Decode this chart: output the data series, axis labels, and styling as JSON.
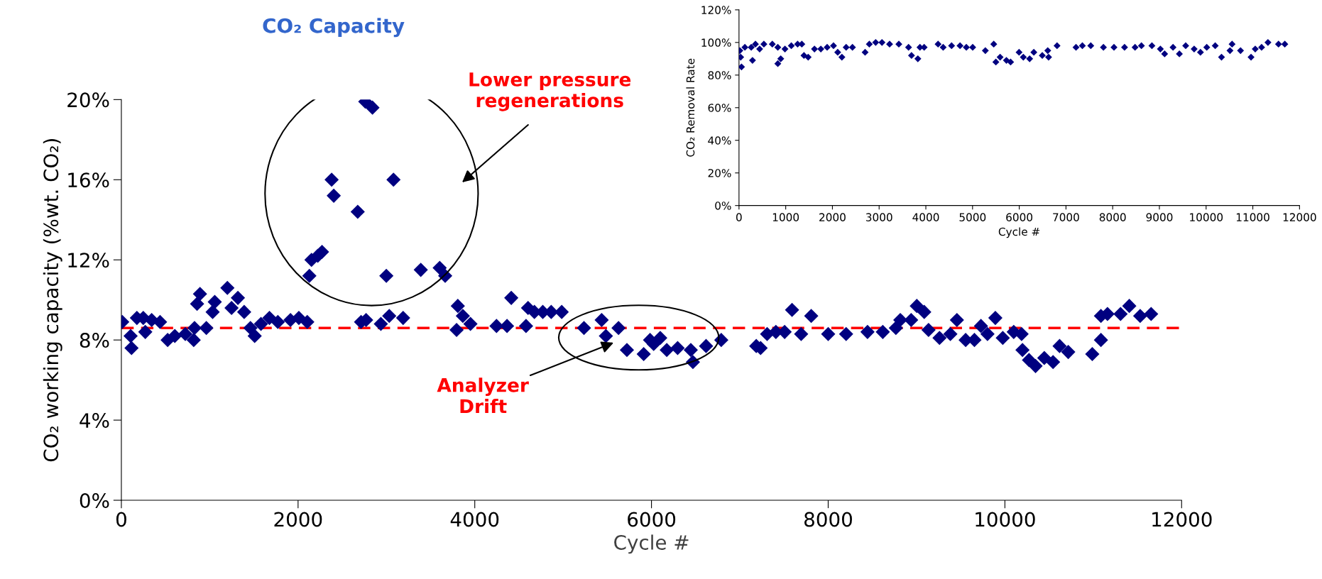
{
  "chart_data": [
    {
      "type": "scatter",
      "title": "CO₂ Capacity",
      "xlabel": "Cycle #",
      "ylabel": "CO₂ working capacity (%wt. CO₂)",
      "marker": "diamond",
      "xlim": [
        0,
        12000
      ],
      "xticks": [
        0,
        2000,
        4000,
        6000,
        8000,
        10000,
        12000
      ],
      "ylim": [
        0,
        20
      ],
      "yticks": [
        {
          "value": 0,
          "label": "0%"
        },
        {
          "value": 4,
          "label": "4%"
        },
        {
          "value": 8,
          "label": "8%"
        },
        {
          "value": 12,
          "label": "12%"
        },
        {
          "value": 16,
          "label": "16%"
        },
        {
          "value": 20,
          "label": "20%"
        }
      ],
      "ref_lines": [
        {
          "axis": "y",
          "value": 8.6,
          "color": "#ff0000",
          "line_style": "dashed"
        }
      ],
      "annotations": [
        "Lower pressure\nregenerations",
        "Analyzer\nDrift"
      ],
      "series": [
        {
          "color": "#000080",
          "x": [
            10,
            105,
            115,
            176,
            248,
            271,
            343,
            438,
            524,
            605,
            724,
            819,
            828,
            857,
            890,
            962,
            1033,
            1057,
            1200,
            1247,
            1319,
            1390,
            1461,
            1509,
            1580,
            1676,
            1771,
            1914,
            2009,
            2104,
            2128,
            2152,
            2223,
            2271,
            2380,
            2404,
            2675,
            2713,
            2770,
            2761,
            2842,
            2937,
            2999,
            3032,
            3080,
            3189,
            3389,
            3603,
            3665,
            3808,
            3794,
            3865,
            3951,
            4246,
            4365,
            4413,
            4580,
            4603,
            4675,
            4770,
            4865,
            4984,
            5236,
            5436,
            5484,
            5627,
            5722,
            5912,
            5984,
            6025,
            6099,
            6173,
            6296,
            6445,
            6469,
            6618,
            6790,
            7186,
            7235,
            7309,
            7408,
            7507,
            7591,
            7694,
            7808,
            8000,
            8203,
            8445,
            8618,
            8766,
            8816,
            8939,
            9003,
            9087,
            9136,
            9260,
            9383,
            9457,
            9556,
            9655,
            9729,
            9803,
            9892,
            9976,
            10100,
            10189,
            10199,
            10273,
            10347,
            10446,
            10545,
            10619,
            10717,
            10989,
            11087,
            11087,
            11161,
            11309,
            11408,
            11531,
            11655
          ],
          "values": [
            8.9,
            8.2,
            7.6,
            9.1,
            9.1,
            8.4,
            9.0,
            8.9,
            8.0,
            8.2,
            8.3,
            8.0,
            8.6,
            9.8,
            10.3,
            8.6,
            9.4,
            9.9,
            10.6,
            9.6,
            10.1,
            9.4,
            8.6,
            8.2,
            8.8,
            9.1,
            8.9,
            9.0,
            9.1,
            8.9,
            11.2,
            12.0,
            12.2,
            12.4,
            16.0,
            15.2,
            14.4,
            8.9,
            9.0,
            19.9,
            19.6,
            8.8,
            11.2,
            9.2,
            16.0,
            9.1,
            11.5,
            11.6,
            11.2,
            9.7,
            8.5,
            9.2,
            8.8,
            8.7,
            8.7,
            10.1,
            8.7,
            9.6,
            9.4,
            9.4,
            9.4,
            9.4,
            8.6,
            9.0,
            8.2,
            8.6,
            7.5,
            7.3,
            8.0,
            7.8,
            8.1,
            7.5,
            7.6,
            7.5,
            6.9,
            7.7,
            8.0,
            7.7,
            7.6,
            8.3,
            8.4,
            8.4,
            9.5,
            8.3,
            9.2,
            8.3,
            8.3,
            8.4,
            8.4,
            8.6,
            9.0,
            9.0,
            9.7,
            9.4,
            8.5,
            8.1,
            8.3,
            9.0,
            8.0,
            8.0,
            8.7,
            8.3,
            9.1,
            8.1,
            8.4,
            8.3,
            7.5,
            7.0,
            6.7,
            7.1,
            6.9,
            7.7,
            7.4,
            7.3,
            8.0,
            9.2,
            9.3,
            9.3,
            9.7,
            9.2,
            9.3
          ]
        }
      ]
    },
    {
      "type": "scatter",
      "xlabel": "Cycle #",
      "ylabel": "CO₂ Removal Rate",
      "marker": "diamond",
      "xlim": [
        0,
        12000
      ],
      "xticks": [
        0,
        1000,
        2000,
        3000,
        4000,
        5000,
        6000,
        7000,
        8000,
        9000,
        10000,
        11000,
        12000
      ],
      "ylim": [
        0,
        120
      ],
      "yticks": [
        {
          "value": 0,
          "label": "0%"
        },
        {
          "value": 20,
          "label": "20%"
        },
        {
          "value": 40,
          "label": "40%"
        },
        {
          "value": 60,
          "label": "60%"
        },
        {
          "value": 80,
          "label": "80%"
        },
        {
          "value": 100,
          "label": "100%"
        },
        {
          "value": 120,
          "label": "120%"
        }
      ],
      "series": [
        {
          "color": "#000080",
          "x": [
            18,
            36,
            54,
            126,
            262,
            289,
            352,
            442,
            533,
            713,
            831,
            831,
            894,
            984,
            1120,
            1255,
            1345,
            1391,
            1481,
            1616,
            1752,
            1887,
            2023,
            2113,
            2203,
            2294,
            2429,
            2700,
            2790,
            2926,
            3061,
            3224,
            3422,
            3630,
            3693,
            3829,
            3874,
            3964,
            4262,
            4371,
            4551,
            4732,
            4867,
            5003,
            5274,
            5454,
            5499,
            5590,
            5725,
            5815,
            5996,
            6087,
            6222,
            6312,
            6493,
            6610,
            6628,
            6809,
            7215,
            7351,
            7531,
            7802,
            8028,
            8254,
            8479,
            8615,
            8840,
            9021,
            9112,
            9292,
            9428,
            9563,
            9744,
            9879,
            10014,
            10195,
            10330,
            10511,
            10556,
            10737,
            10962,
            11052,
            11188,
            11324,
            11550,
            11685
          ],
          "values": [
            95,
            91,
            85,
            97,
            97,
            89,
            99,
            96,
            99,
            99,
            97,
            87,
            90,
            96,
            98,
            99,
            99,
            92,
            91,
            96,
            96,
            97,
            98,
            94,
            91,
            97,
            97,
            94,
            99,
            100,
            100,
            99,
            99,
            97,
            92,
            90,
            97,
            97,
            99,
            97,
            98,
            98,
            97,
            97,
            95,
            99,
            88,
            91,
            89,
            88,
            94,
            91,
            90,
            94,
            92,
            95,
            91,
            98,
            97,
            98,
            98,
            97,
            97,
            97,
            97,
            98,
            98,
            96,
            93,
            97,
            93,
            98,
            96,
            94,
            97,
            98,
            91,
            95,
            99,
            95,
            91,
            96,
            97,
            100,
            99,
            99
          ]
        }
      ]
    }
  ]
}
